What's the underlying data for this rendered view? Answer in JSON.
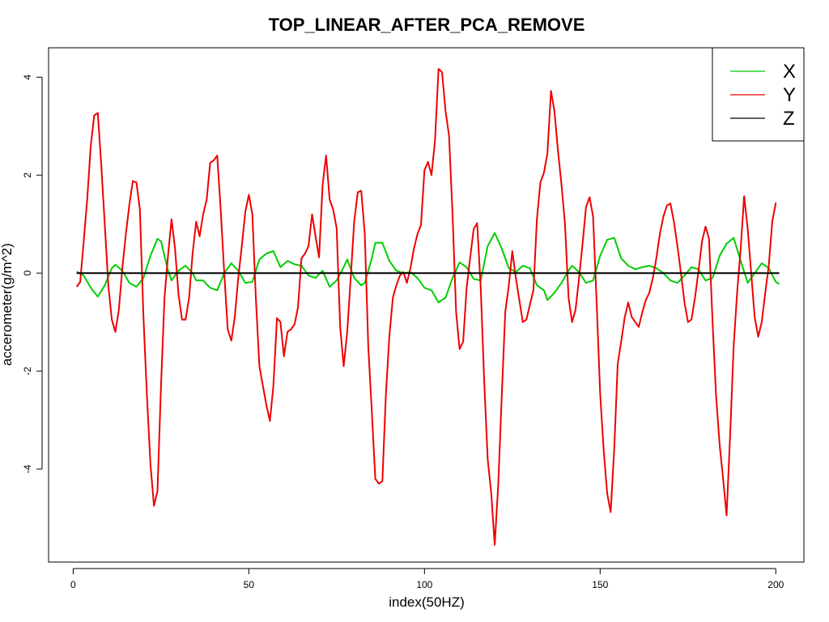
{
  "chart_data": {
    "type": "line",
    "title": "TOP_LINEAR_AFTER_PCA_REMOVE",
    "xlabel": "index(50HZ)",
    "ylabel": "accerometer(g/m^2)",
    "xlim": [
      -7,
      208
    ],
    "ylim": [
      -5.9,
      4.6
    ],
    "xticks": [
      0,
      50,
      100,
      150,
      200
    ],
    "yticks": [
      -4,
      -2,
      0,
      2,
      4
    ],
    "grid": false,
    "legend_position": "top-right",
    "series": [
      {
        "name": "X",
        "color": "#00cd00",
        "points": [
          [
            1,
            0.03
          ],
          [
            3,
            -0.05
          ],
          [
            5,
            -0.3
          ],
          [
            7,
            -0.48
          ],
          [
            9,
            -0.25
          ],
          [
            11,
            0.1
          ],
          [
            12,
            0.17
          ],
          [
            14,
            0.05
          ],
          [
            16,
            -0.2
          ],
          [
            18,
            -0.28
          ],
          [
            20,
            -0.1
          ],
          [
            22,
            0.35
          ],
          [
            24,
            0.7
          ],
          [
            25,
            0.65
          ],
          [
            27,
            0.05
          ],
          [
            28,
            -0.15
          ],
          [
            30,
            0.05
          ],
          [
            32,
            0.15
          ],
          [
            34,
            0.0
          ],
          [
            35,
            -0.15
          ],
          [
            37,
            -0.15
          ],
          [
            39,
            -0.3
          ],
          [
            41,
            -0.35
          ],
          [
            43,
            0.0
          ],
          [
            45,
            0.2
          ],
          [
            47,
            0.05
          ],
          [
            49,
            -0.2
          ],
          [
            51,
            -0.18
          ],
          [
            53,
            0.28
          ],
          [
            55,
            0.4
          ],
          [
            57,
            0.45
          ],
          [
            59,
            0.12
          ],
          [
            61,
            0.25
          ],
          [
            63,
            0.18
          ],
          [
            65,
            0.15
          ],
          [
            67,
            -0.05
          ],
          [
            69,
            -0.1
          ],
          [
            71,
            0.05
          ],
          [
            73,
            -0.28
          ],
          [
            75,
            -0.15
          ],
          [
            77,
            0.12
          ],
          [
            78,
            0.28
          ],
          [
            80,
            -0.1
          ],
          [
            82,
            -0.25
          ],
          [
            83,
            -0.2
          ],
          [
            85,
            0.3
          ],
          [
            86,
            0.62
          ],
          [
            88,
            0.62
          ],
          [
            90,
            0.25
          ],
          [
            92,
            0.05
          ],
          [
            94,
            0.0
          ],
          [
            96,
            0.02
          ],
          [
            98,
            -0.1
          ],
          [
            100,
            -0.3
          ],
          [
            102,
            -0.35
          ],
          [
            104,
            -0.6
          ],
          [
            106,
            -0.5
          ],
          [
            108,
            -0.1
          ],
          [
            110,
            0.22
          ],
          [
            112,
            0.12
          ],
          [
            114,
            -0.12
          ],
          [
            116,
            -0.15
          ],
          [
            118,
            0.55
          ],
          [
            120,
            0.82
          ],
          [
            122,
            0.5
          ],
          [
            124,
            0.1
          ],
          [
            126,
            0.02
          ],
          [
            128,
            0.15
          ],
          [
            130,
            0.1
          ],
          [
            132,
            -0.25
          ],
          [
            134,
            -0.35
          ],
          [
            135,
            -0.55
          ],
          [
            137,
            -0.4
          ],
          [
            139,
            -0.2
          ],
          [
            141,
            0.05
          ],
          [
            142,
            0.15
          ],
          [
            144,
            0.02
          ],
          [
            146,
            -0.2
          ],
          [
            148,
            -0.15
          ],
          [
            150,
            0.35
          ],
          [
            152,
            0.68
          ],
          [
            154,
            0.72
          ],
          [
            156,
            0.3
          ],
          [
            158,
            0.15
          ],
          [
            160,
            0.08
          ],
          [
            162,
            0.12
          ],
          [
            164,
            0.15
          ],
          [
            166,
            0.1
          ],
          [
            168,
            0.0
          ],
          [
            170,
            -0.15
          ],
          [
            172,
            -0.2
          ],
          [
            174,
            -0.05
          ],
          [
            176,
            0.12
          ],
          [
            178,
            0.08
          ],
          [
            180,
            -0.15
          ],
          [
            182,
            -0.1
          ],
          [
            184,
            0.35
          ],
          [
            186,
            0.6
          ],
          [
            188,
            0.72
          ],
          [
            190,
            0.25
          ],
          [
            192,
            -0.2
          ],
          [
            194,
            0.0
          ],
          [
            196,
            0.2
          ],
          [
            198,
            0.1
          ],
          [
            200,
            -0.18
          ],
          [
            201,
            -0.22
          ]
        ]
      },
      {
        "name": "Y",
        "color": "#ee0000",
        "points": [
          [
            1,
            -0.28
          ],
          [
            2,
            -0.18
          ],
          [
            3,
            0.65
          ],
          [
            4,
            1.5
          ],
          [
            5,
            2.6
          ],
          [
            6,
            3.22
          ],
          [
            7,
            3.27
          ],
          [
            8,
            2.2
          ],
          [
            9,
            1.0
          ],
          [
            10,
            -0.25
          ],
          [
            11,
            -0.95
          ],
          [
            12,
            -1.2
          ],
          [
            13,
            -0.75
          ],
          [
            14,
            0.1
          ],
          [
            15,
            0.8
          ],
          [
            16,
            1.4
          ],
          [
            17,
            1.88
          ],
          [
            18,
            1.85
          ],
          [
            19,
            1.3
          ],
          [
            20,
            -0.9
          ],
          [
            21,
            -2.5
          ],
          [
            22,
            -3.9
          ],
          [
            23,
            -4.75
          ],
          [
            24,
            -4.45
          ],
          [
            25,
            -2.3
          ],
          [
            26,
            -0.5
          ],
          [
            27,
            0.35
          ],
          [
            28,
            1.1
          ],
          [
            29,
            0.5
          ],
          [
            30,
            -0.45
          ],
          [
            31,
            -0.95
          ],
          [
            32,
            -0.95
          ],
          [
            33,
            -0.5
          ],
          [
            34,
            0.4
          ],
          [
            35,
            1.05
          ],
          [
            36,
            0.75
          ],
          [
            37,
            1.2
          ],
          [
            38,
            1.5
          ],
          [
            39,
            2.25
          ],
          [
            40,
            2.3
          ],
          [
            41,
            2.4
          ],
          [
            42,
            1.3
          ],
          [
            43,
            0.0
          ],
          [
            44,
            -1.15
          ],
          [
            45,
            -1.38
          ],
          [
            46,
            -0.9
          ],
          [
            47,
            -0.1
          ],
          [
            48,
            0.55
          ],
          [
            49,
            1.25
          ],
          [
            50,
            1.6
          ],
          [
            51,
            1.2
          ],
          [
            52,
            -0.5
          ],
          [
            53,
            -1.9
          ],
          [
            54,
            -2.3
          ],
          [
            55,
            -2.7
          ],
          [
            56,
            -3.02
          ],
          [
            57,
            -2.3
          ],
          [
            58,
            -0.92
          ],
          [
            59,
            -1.0
          ],
          [
            60,
            -1.7
          ],
          [
            61,
            -1.2
          ],
          [
            62,
            -1.15
          ],
          [
            63,
            -1.05
          ],
          [
            64,
            -0.7
          ],
          [
            65,
            0.3
          ],
          [
            66,
            0.4
          ],
          [
            67,
            0.55
          ],
          [
            68,
            1.2
          ],
          [
            69,
            0.75
          ],
          [
            70,
            0.32
          ],
          [
            71,
            1.8
          ],
          [
            72,
            2.4
          ],
          [
            73,
            1.5
          ],
          [
            74,
            1.3
          ],
          [
            75,
            0.92
          ],
          [
            76,
            -1.1
          ],
          [
            77,
            -1.9
          ],
          [
            78,
            -1.2
          ],
          [
            79,
            -0.1
          ],
          [
            80,
            1.05
          ],
          [
            81,
            1.65
          ],
          [
            82,
            1.68
          ],
          [
            83,
            0.8
          ],
          [
            84,
            -1.5
          ],
          [
            85,
            -2.8
          ],
          [
            86,
            -4.2
          ],
          [
            87,
            -4.3
          ],
          [
            88,
            -4.25
          ],
          [
            89,
            -2.5
          ],
          [
            90,
            -1.3
          ],
          [
            91,
            -0.5
          ],
          [
            92,
            -0.25
          ],
          [
            93,
            -0.05
          ],
          [
            94,
            0.02
          ],
          [
            95,
            -0.2
          ],
          [
            96,
            0.1
          ],
          [
            97,
            0.5
          ],
          [
            98,
            0.8
          ],
          [
            99,
            0.98
          ],
          [
            100,
            2.1
          ],
          [
            101,
            2.27
          ],
          [
            102,
            2.0
          ],
          [
            103,
            2.7
          ],
          [
            104,
            4.17
          ],
          [
            105,
            4.1
          ],
          [
            106,
            3.3
          ],
          [
            107,
            2.8
          ],
          [
            108,
            1.2
          ],
          [
            109,
            -0.8
          ],
          [
            110,
            -1.55
          ],
          [
            111,
            -1.4
          ],
          [
            112,
            -0.3
          ],
          [
            113,
            0.3
          ],
          [
            114,
            0.9
          ],
          [
            115,
            1.02
          ],
          [
            116,
            -0.3
          ],
          [
            117,
            -2.2
          ],
          [
            118,
            -3.8
          ],
          [
            119,
            -4.5
          ],
          [
            120,
            -5.55
          ],
          [
            121,
            -4.3
          ],
          [
            122,
            -2.5
          ],
          [
            123,
            -0.8
          ],
          [
            124,
            -0.25
          ],
          [
            125,
            0.45
          ],
          [
            126,
            -0.1
          ],
          [
            127,
            -0.55
          ],
          [
            128,
            -1.0
          ],
          [
            129,
            -0.95
          ],
          [
            130,
            -0.65
          ],
          [
            131,
            -0.35
          ],
          [
            132,
            1.1
          ],
          [
            133,
            1.85
          ],
          [
            134,
            2.05
          ],
          [
            135,
            2.45
          ],
          [
            136,
            3.72
          ],
          [
            137,
            3.3
          ],
          [
            138,
            2.5
          ],
          [
            139,
            1.8
          ],
          [
            140,
            1.0
          ],
          [
            141,
            -0.5
          ],
          [
            142,
            -1.0
          ],
          [
            143,
            -0.75
          ],
          [
            144,
            -0.1
          ],
          [
            145,
            0.6
          ],
          [
            146,
            1.35
          ],
          [
            147,
            1.55
          ],
          [
            148,
            1.15
          ],
          [
            149,
            -0.6
          ],
          [
            150,
            -2.45
          ],
          [
            151,
            -3.6
          ],
          [
            152,
            -4.5
          ],
          [
            153,
            -4.88
          ],
          [
            154,
            -3.6
          ],
          [
            155,
            -1.85
          ],
          [
            156,
            -1.4
          ],
          [
            157,
            -0.9
          ],
          [
            158,
            -0.6
          ],
          [
            159,
            -0.9
          ],
          [
            160,
            -1.0
          ],
          [
            161,
            -1.1
          ],
          [
            162,
            -0.8
          ],
          [
            163,
            -0.55
          ],
          [
            164,
            -0.4
          ],
          [
            165,
            -0.1
          ],
          [
            166,
            0.3
          ],
          [
            167,
            0.8
          ],
          [
            168,
            1.15
          ],
          [
            169,
            1.38
          ],
          [
            170,
            1.42
          ],
          [
            171,
            1.05
          ],
          [
            172,
            0.55
          ],
          [
            173,
            0.0
          ],
          [
            174,
            -0.6
          ],
          [
            175,
            -1.0
          ],
          [
            176,
            -0.95
          ],
          [
            177,
            -0.5
          ],
          [
            178,
            0.05
          ],
          [
            179,
            0.65
          ],
          [
            180,
            0.95
          ],
          [
            181,
            0.7
          ],
          [
            182,
            -1.0
          ],
          [
            183,
            -2.5
          ],
          [
            184,
            -3.5
          ],
          [
            185,
            -4.2
          ],
          [
            186,
            -4.95
          ],
          [
            187,
            -3.3
          ],
          [
            188,
            -1.5
          ],
          [
            189,
            -0.4
          ],
          [
            190,
            0.5
          ],
          [
            191,
            1.57
          ],
          [
            192,
            0.9
          ],
          [
            193,
            0.0
          ],
          [
            194,
            -0.9
          ],
          [
            195,
            -1.3
          ],
          [
            196,
            -1.0
          ],
          [
            197,
            -0.4
          ],
          [
            198,
            0.15
          ],
          [
            199,
            1.05
          ],
          [
            200,
            1.44
          ]
        ]
      },
      {
        "name": "Z",
        "color": "#000000",
        "points": [
          [
            1,
            0
          ],
          [
            201,
            0
          ]
        ]
      }
    ]
  }
}
